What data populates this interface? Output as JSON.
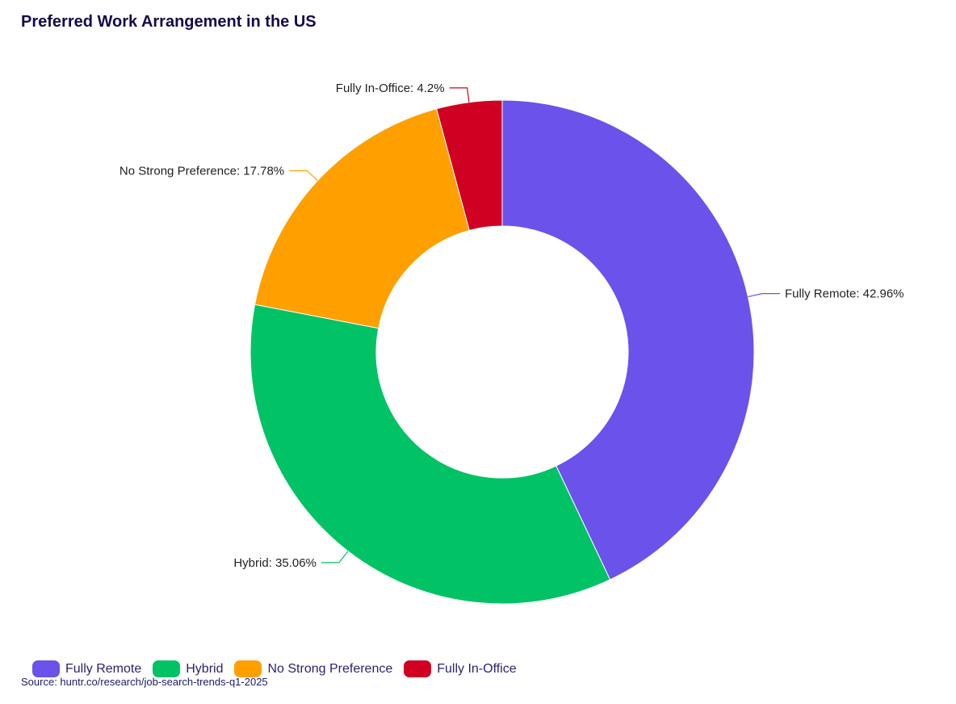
{
  "chart_data": {
    "type": "pie",
    "variant": "donut",
    "title": "Preferred Work Arrangement in the US",
    "source": "Source: huntr.co/research/job-search-trends-q1-2025",
    "legend_position": "bottom-left",
    "slices": [
      {
        "name": "Fully Remote",
        "value": 42.96,
        "label": "Fully Remote: 42.96%",
        "color": "#6b52ea"
      },
      {
        "name": "Hybrid",
        "value": 35.06,
        "label": "Hybrid: 35.06%",
        "color": "#02c266"
      },
      {
        "name": "No Strong Preference",
        "value": 17.78,
        "label": "No Strong Preference: 17.78%",
        "color": "#ff9f00"
      },
      {
        "name": "Fully In-Office",
        "value": 4.2,
        "label": "Fully In-Office: 4.2%",
        "color": "#cf0022"
      }
    ]
  }
}
